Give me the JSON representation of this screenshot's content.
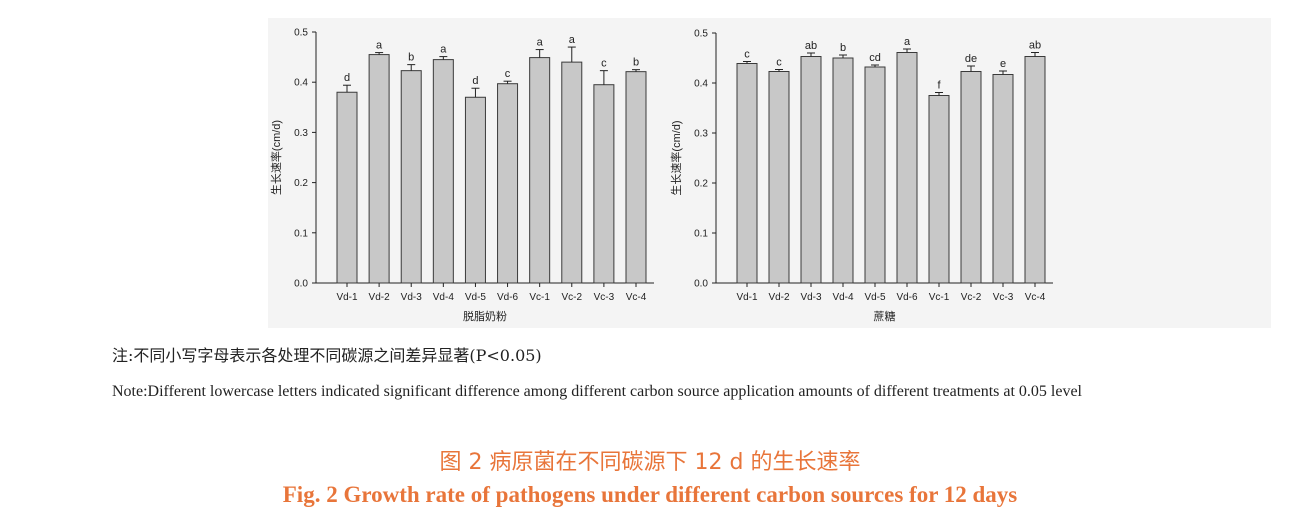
{
  "chart_data": [
    {
      "type": "bar",
      "ylabel": "生长速率(cm/d)",
      "xlabel": "脱脂奶粉",
      "ylim": [
        0,
        0.5
      ],
      "yticks": [
        "0.0",
        "0.1",
        "0.2",
        "0.3",
        "0.4",
        "0.5"
      ],
      "categories": [
        "Vd-1",
        "Vd-2",
        "Vd-3",
        "Vd-4",
        "Vd-5",
        "Vd-6",
        "Vc-1",
        "Vc-2",
        "Vc-3",
        "Vc-4"
      ],
      "values": [
        0.38,
        0.455,
        0.423,
        0.445,
        0.37,
        0.397,
        0.449,
        0.44,
        0.395,
        0.421
      ],
      "errors": [
        0.014,
        0.004,
        0.012,
        0.006,
        0.018,
        0.005,
        0.016,
        0.03,
        0.028,
        0.004
      ],
      "letters": [
        "d",
        "a",
        "b",
        "a",
        "d",
        "c",
        "a",
        "a",
        "c",
        "b"
      ]
    },
    {
      "type": "bar",
      "ylabel": "生长速率(cm/d)",
      "xlabel": "蔗糖",
      "ylim": [
        0,
        0.5
      ],
      "yticks": [
        "0.0",
        "0.1",
        "0.2",
        "0.3",
        "0.4",
        "0.5"
      ],
      "categories": [
        "Vd-1",
        "Vd-2",
        "Vd-3",
        "Vd-4",
        "Vd-5",
        "Vd-6",
        "Vc-1",
        "Vc-2",
        "Vc-3",
        "Vc-4"
      ],
      "values": [
        0.439,
        0.423,
        0.453,
        0.45,
        0.432,
        0.461,
        0.375,
        0.423,
        0.417,
        0.453
      ],
      "errors": [
        0.004,
        0.004,
        0.007,
        0.006,
        0.004,
        0.007,
        0.006,
        0.011,
        0.007,
        0.008
      ],
      "letters": [
        "c",
        "c",
        "ab",
        "b",
        "cd",
        "a",
        "f",
        "de",
        "e",
        "ab"
      ]
    }
  ],
  "notes": {
    "cn": "注:不同小写字母表示各处理不同碳源之间差异显著(P<0.05)",
    "en": "Note:Different lowercase letters indicated significant difference among different carbon source application amounts of different treatments at 0.05 level"
  },
  "caption": {
    "cn": "图 2 病原菌在不同碳源下 12 d 的生长速率",
    "en": "Fig. 2 Growth rate of pathogens under different carbon sources for 12 days"
  },
  "colors": {
    "bar_fill": "#c8c8c8",
    "bar_stroke": "#3a3a3a",
    "caption": "#e8753a",
    "panel_bg": "#f4f4f4"
  }
}
